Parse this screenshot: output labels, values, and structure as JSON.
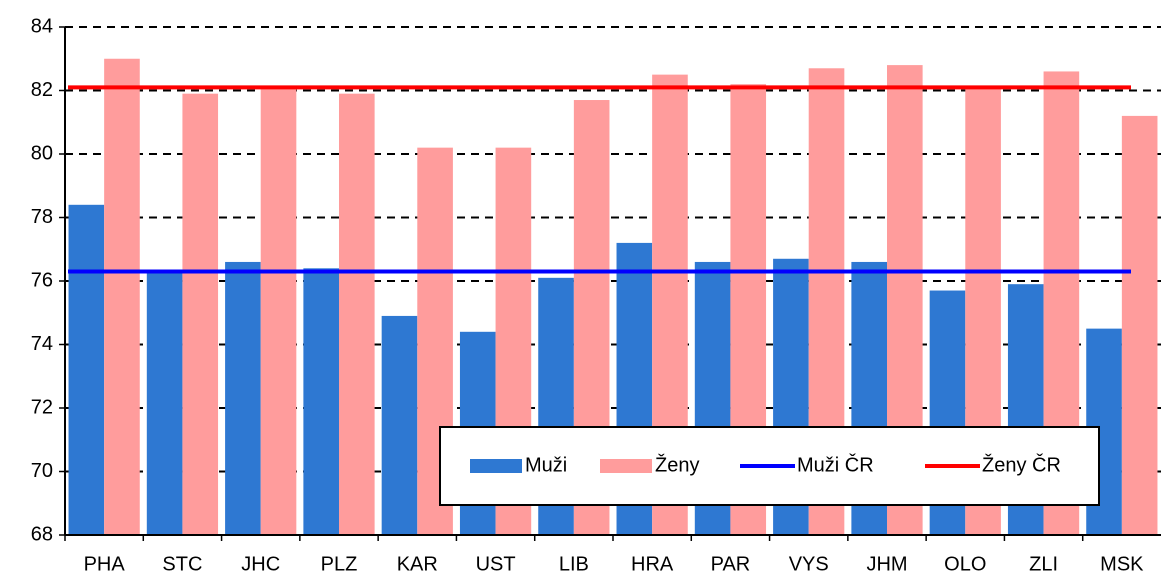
{
  "chart_data": {
    "type": "bar",
    "categories": [
      "PHA",
      "STC",
      "JHC",
      "PLZ",
      "KAR",
      "UST",
      "LIB",
      "HRA",
      "PAR",
      "VYS",
      "JHM",
      "OLO",
      "ZLI",
      "MSK"
    ],
    "series": [
      {
        "name": "Muži",
        "color": "#2e78d2",
        "values": [
          78.4,
          76.3,
          76.6,
          76.4,
          74.9,
          74.4,
          76.1,
          77.2,
          76.6,
          76.7,
          76.6,
          75.7,
          75.9,
          74.5
        ]
      },
      {
        "name": "Ženy",
        "color": "#ff9c9c",
        "values": [
          83.0,
          81.9,
          82.1,
          81.9,
          80.2,
          80.2,
          81.7,
          82.5,
          82.2,
          82.7,
          82.8,
          82.1,
          82.6,
          81.2
        ]
      }
    ],
    "reference_lines": [
      {
        "name": "Muži ČR",
        "color": "#0000ff",
        "value": 76.3
      },
      {
        "name": "Ženy ČR",
        "color": "#ff0000",
        "value": 82.1
      }
    ],
    "ylim": [
      68,
      84
    ],
    "yticks": [
      68,
      70,
      72,
      74,
      76,
      78,
      80,
      82,
      84
    ],
    "grid": true
  }
}
